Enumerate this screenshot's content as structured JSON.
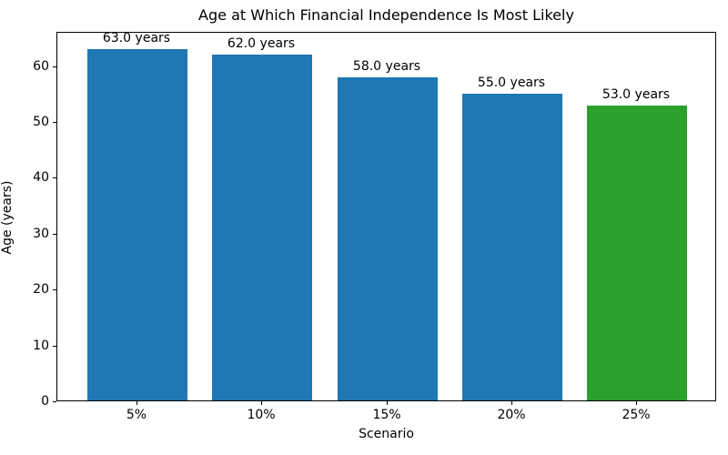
{
  "chart_data": {
    "type": "bar",
    "title": "Age at Which Financial Independence Is Most Likely",
    "xlabel": "Scenario",
    "ylabel": "Age (years)",
    "categories": [
      "5%",
      "10%",
      "15%",
      "20%",
      "25%"
    ],
    "values": [
      63.0,
      62.0,
      58.0,
      55.0,
      53.0
    ],
    "bar_labels": [
      "63.0 years",
      "62.0 years",
      "58.0 years",
      "55.0 years",
      "53.0 years"
    ],
    "bar_colors": [
      "#1f77b4",
      "#1f77b4",
      "#1f77b4",
      "#1f77b4",
      "#2ca02c"
    ],
    "yticks": [
      0,
      10,
      20,
      30,
      40,
      50,
      60
    ],
    "ylim": [
      0,
      66.15
    ],
    "grid": false,
    "legend_position": "none",
    "spine_color": "#000000",
    "background_color": "#ffffff"
  }
}
